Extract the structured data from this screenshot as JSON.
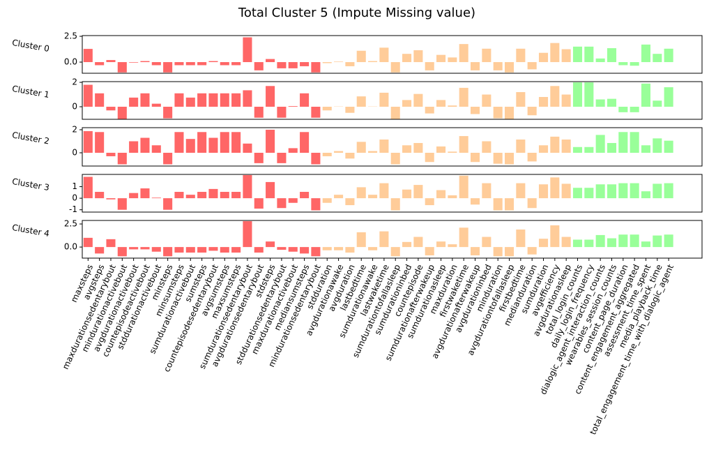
{
  "chart_data": {
    "type": "bar",
    "title": "Total Cluster 5 (Impute Missing value)",
    "categories": [
      "maxsteps",
      "avgsteps",
      "maxdurationsedentarybout",
      "mindurationactivebout",
      "avgdurationactivebout",
      "countepisodeactivebout",
      "stddurationactivebout",
      "minsteps",
      "minsumsteps",
      "sumdurationactivebout",
      "sumsteps",
      "countepisodesedentarybout",
      "avgsumsteps",
      "maxsumsteps",
      "sumdurationsedentarybout",
      "avgdurationsedentarybout",
      "stdsteps",
      "stddurationsedentarybout",
      "maxdurationactivebout",
      "mediansumsteps",
      "mindurationsedentarybout",
      "stdduration",
      "avgdurationawake",
      "avgduration",
      "lastbedtime",
      "sumdurationawake",
      "lastwaketime",
      "sumdurationtofallasleep",
      "sumdurationinbed",
      "countepisode",
      "sumdurationafterwakeup",
      "sumdurationasleep",
      "maxduration",
      "firstwaketime",
      "avgdurationafterwakeup",
      "avgdurationinbed",
      "minduration",
      "avgdurationtofallasleep",
      "firstbedtime",
      "medianduration",
      "sumduration",
      "avgefficiency",
      "avgdurationasleep",
      "total_login_counts",
      "daily_login_frequency",
      "dialogic_agent_interaction_counts",
      "wearables_session_counts",
      "content_page_duration",
      "content_engagement_aggregated",
      "assessment_time_spent",
      "media_playback_time",
      "total_engagement_time_with_dialogic_agent"
    ],
    "colors": [
      "#ff6666",
      "#ff6666",
      "#ff6666",
      "#ff6666",
      "#ff6666",
      "#ff6666",
      "#ff6666",
      "#ff6666",
      "#ff6666",
      "#ff6666",
      "#ff6666",
      "#ff6666",
      "#ff6666",
      "#ff6666",
      "#ff6666",
      "#ff6666",
      "#ff6666",
      "#ff6666",
      "#ff6666",
      "#ff6666",
      "#ff6666",
      "#ffcc99",
      "#ffcc99",
      "#ffcc99",
      "#ffcc99",
      "#ffcc99",
      "#ffcc99",
      "#ffcc99",
      "#ffcc99",
      "#ffcc99",
      "#ffcc99",
      "#ffcc99",
      "#ffcc99",
      "#ffcc99",
      "#ffcc99",
      "#ffcc99",
      "#ffcc99",
      "#ffcc99",
      "#ffcc99",
      "#ffcc99",
      "#ffcc99",
      "#ffcc99",
      "#ffcc99",
      "#99ff99",
      "#99ff99",
      "#99ff99",
      "#99ff99",
      "#99ff99",
      "#99ff99",
      "#99ff99",
      "#99ff99",
      "#99ff99"
    ],
    "panels": [
      {
        "ylabel": "Cluster 0",
        "ylim": [
          -1.08,
          2.57
        ],
        "yticks": [
          {
            "value": 0,
            "label": "0.0"
          },
          2.5
        ],
        "values": [
          1.28,
          -0.3,
          0.2,
          -1.0,
          -0.05,
          0.1,
          -0.3,
          -1.0,
          -0.3,
          -0.3,
          -0.3,
          0.1,
          -0.3,
          -0.3,
          2.4,
          -0.8,
          0.3,
          -0.6,
          -0.6,
          -0.4,
          -1.0,
          -0.1,
          0.05,
          -0.4,
          1.1,
          0.1,
          1.4,
          -1.0,
          0.8,
          1.15,
          -0.8,
          0.7,
          0.45,
          1.75,
          -0.8,
          1.3,
          -0.8,
          -1.0,
          1.3,
          -0.7,
          0.9,
          1.85,
          1.25,
          1.5,
          1.5,
          0.35,
          1.35,
          -0.3,
          -0.35,
          1.7,
          0.8,
          1.3
        ]
      },
      {
        "ylabel": "Cluster 1",
        "ylim": [
          -1.03,
          2.06
        ],
        "yticks": [
          0,
          2
        ],
        "values": [
          1.8,
          1.1,
          -0.3,
          -1.0,
          0.75,
          1.1,
          0.25,
          -0.95,
          1.1,
          0.75,
          1.1,
          1.1,
          1.1,
          1.1,
          1.35,
          -0.9,
          1.7,
          -0.9,
          0.05,
          1.1,
          -0.9,
          -0.3,
          0.02,
          -0.5,
          0.85,
          0.02,
          1.15,
          -1.0,
          0.55,
          1.05,
          -0.55,
          0.55,
          0.1,
          1.55,
          -0.6,
          1.0,
          -0.95,
          -1.0,
          1.2,
          -0.7,
          0.8,
          1.7,
          1.0,
          2.0,
          2.0,
          0.6,
          0.65,
          -0.45,
          -0.45,
          1.9,
          0.5,
          1.6
        ]
      },
      {
        "ylabel": "Cluster 2",
        "ylim": [
          -1.15,
          2.18
        ],
        "yticks": [
          0,
          2
        ],
        "values": [
          1.88,
          1.8,
          -0.3,
          -1.0,
          1.0,
          1.3,
          0.65,
          -1.0,
          1.8,
          1.2,
          1.8,
          1.3,
          1.8,
          1.8,
          0.8,
          -0.9,
          2.0,
          -0.9,
          0.4,
          1.8,
          -1.0,
          -0.3,
          0.15,
          -0.5,
          0.95,
          0.15,
          1.15,
          -1.0,
          0.65,
          0.85,
          -0.8,
          0.55,
          0.1,
          1.45,
          -0.8,
          1.0,
          -0.95,
          -1.0,
          1.15,
          -0.75,
          0.65,
          1.4,
          1.15,
          0.5,
          0.5,
          1.55,
          0.85,
          1.8,
          1.8,
          0.65,
          1.25,
          1.05
        ]
      },
      {
        "ylabel": "Cluster 3",
        "ylim": [
          -1.2,
          2.06
        ],
        "yticks": [
          -1,
          0,
          1
        ],
        "values": [
          1.85,
          0.55,
          -0.1,
          -1.0,
          0.45,
          0.85,
          0.05,
          -1.0,
          0.55,
          0.3,
          0.55,
          0.8,
          0.55,
          0.55,
          2.0,
          -0.9,
          1.4,
          -0.85,
          -0.4,
          0.55,
          -1.05,
          -0.4,
          0.3,
          -0.6,
          0.95,
          0.3,
          1.3,
          -1.05,
          0.75,
          1.15,
          -0.6,
          0.7,
          0.25,
          1.95,
          -0.55,
          1.3,
          -1.05,
          -1.05,
          1.3,
          -0.85,
          1.2,
          1.8,
          1.25,
          0.9,
          0.9,
          1.2,
          1.2,
          1.3,
          1.3,
          0.6,
          1.25,
          1.3
        ]
      },
      {
        "ylabel": "Cluster 4",
        "ylim": [
          -1.2,
          2.88
        ],
        "yticks": [
          {
            "value": 0,
            "label": "0.0"
          },
          2.5
        ],
        "values": [
          1.0,
          -0.7,
          0.85,
          -1.0,
          -0.25,
          -0.25,
          -0.5,
          -1.0,
          -0.6,
          -0.6,
          -0.6,
          -0.4,
          -0.6,
          -0.6,
          2.8,
          -0.6,
          0.6,
          -0.3,
          -0.5,
          -0.7,
          -1.0,
          -0.35,
          -0.35,
          -0.6,
          1.6,
          -0.35,
          1.7,
          -1.0,
          0.55,
          1.1,
          -0.9,
          0.6,
          0.3,
          2.1,
          -0.9,
          1.1,
          -1.0,
          -1.0,
          1.9,
          -0.8,
          0.9,
          2.35,
          1.1,
          0.8,
          0.8,
          1.3,
          0.95,
          1.35,
          1.35,
          0.6,
          1.25,
          1.35
        ]
      }
    ]
  }
}
